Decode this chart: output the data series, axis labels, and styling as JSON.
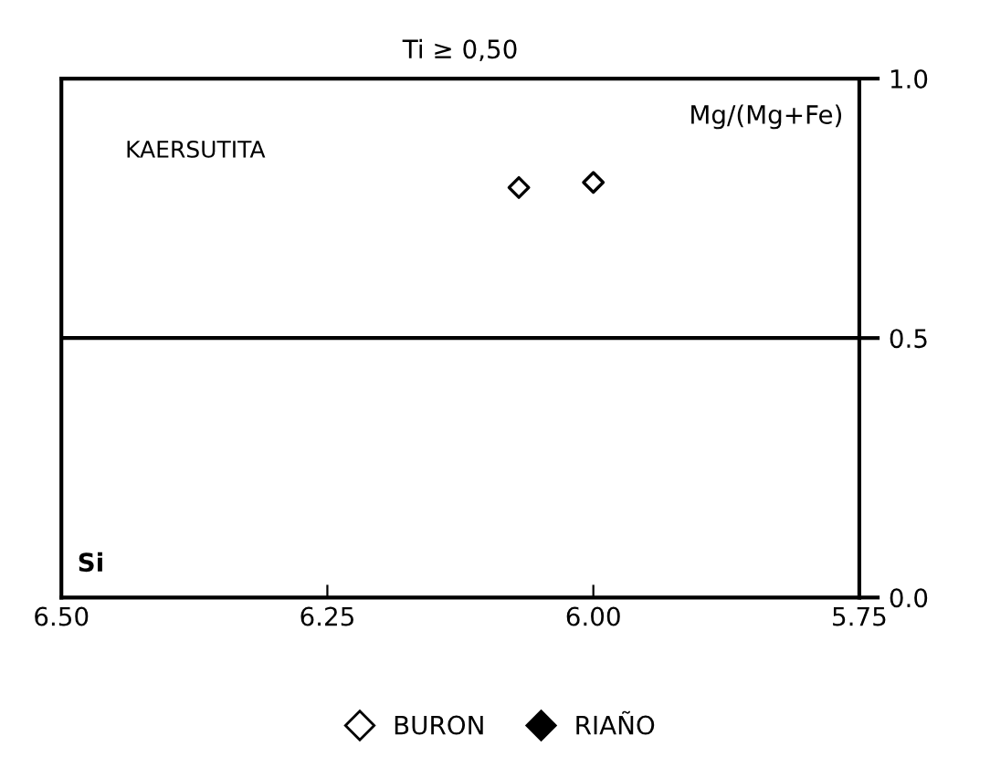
{
  "chart_data": {
    "type": "scatter",
    "title": "Ti ≥ 0,50",
    "xlabel": "Si",
    "ylabel": "Mg/(Mg+Fe)",
    "annotations": [
      "KAERSUTITA"
    ],
    "series": [
      {
        "name": "BURON",
        "color": "#000000",
        "marker": "diamond",
        "x": [
          6.07,
          6.0
        ],
        "values": [
          0.79,
          0.8
        ]
      },
      {
        "name": "RIAÑO",
        "color": "#000000",
        "marker": "diamond"
      }
    ],
    "xlim": [
      6.5,
      5.75
    ],
    "xticks": [
      {
        "value": 6.5,
        "label": "6.50"
      },
      {
        "value": 6.25,
        "label": "6.25"
      },
      {
        "value": 6.0,
        "label": "6.00"
      },
      5.75
    ],
    "ylim": [
      0,
      1
    ],
    "yticks": [
      {
        "value": 0,
        "label": "0.0"
      },
      0.5,
      {
        "value": 1,
        "label": "1.0"
      }
    ],
    "ref_lines": [
      {
        "axis": "y",
        "value": 0.5,
        "color": "#000000",
        "line_style": "solid"
      }
    ],
    "grid": false,
    "legend": "bottom"
  }
}
